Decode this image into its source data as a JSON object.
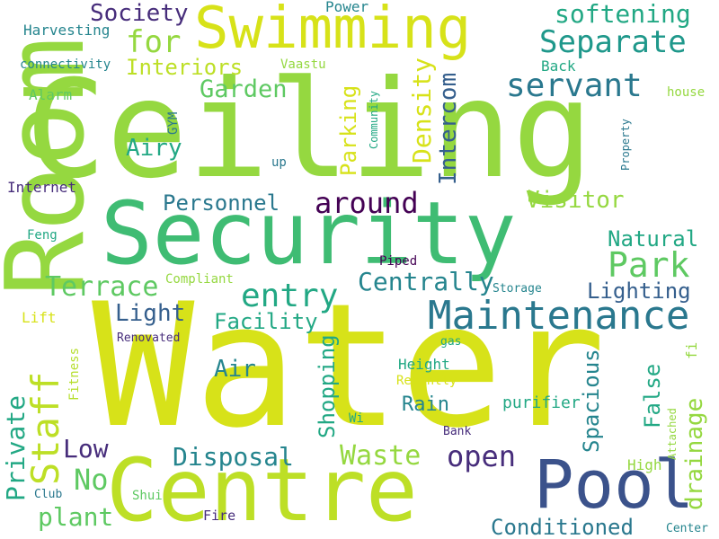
{
  "palette": {
    "background": "#ffffff",
    "word_colors": [
      "#d7e219",
      "#95d840",
      "#5ec962",
      "#3fbc73",
      "#22a884",
      "#1f988b",
      "#25858e",
      "#2a788e",
      "#355f8d",
      "#3b528b",
      "#443983",
      "#472d7b",
      "#440154"
    ]
  },
  "words": [
    {
      "text": "Water",
      "color": "#d7e219"
    },
    {
      "text": "Ceiling",
      "color": "#95d840"
    },
    {
      "text": "Room",
      "color": "#95d840"
    },
    {
      "text": "Security",
      "color": "#3fbc73"
    },
    {
      "text": "Centre",
      "color": "#bddf26"
    },
    {
      "text": "Swimming",
      "color": "#d7e219"
    },
    {
      "text": "Pool",
      "color": "#3b528b"
    },
    {
      "text": "Maintenance",
      "color": "#2a788e"
    },
    {
      "text": "Staff",
      "color": "#bddf26"
    },
    {
      "text": "Park",
      "color": "#5ec962"
    },
    {
      "text": "Separate",
      "color": "#1f988b"
    },
    {
      "text": "servant",
      "color": "#2a788e"
    },
    {
      "text": "entry",
      "color": "#22a884"
    },
    {
      "text": "for",
      "color": "#95d840"
    },
    {
      "text": "softening",
      "color": "#22a884"
    },
    {
      "text": "Society",
      "color": "#472d7b"
    },
    {
      "text": "Interiors",
      "color": "#bddf26"
    },
    {
      "text": "Garden",
      "color": "#5ec962"
    },
    {
      "text": "Airy",
      "color": "#22a884"
    },
    {
      "text": "Density",
      "color": "#d7e219"
    },
    {
      "text": "Parking",
      "color": "#d7e219"
    },
    {
      "text": "Intercom",
      "color": "#355f8d"
    },
    {
      "text": "Personnel",
      "color": "#2a788e"
    },
    {
      "text": "around",
      "color": "#440154"
    },
    {
      "text": "Visitor",
      "color": "#95d840"
    },
    {
      "text": "Natural",
      "color": "#22a884"
    },
    {
      "text": "Terrace",
      "color": "#5ec962"
    },
    {
      "text": "Centrally",
      "color": "#25858e"
    },
    {
      "text": "Lighting",
      "color": "#355f8d"
    },
    {
      "text": "Light",
      "color": "#355f8d"
    },
    {
      "text": "Facility",
      "color": "#22a884"
    },
    {
      "text": "Private",
      "color": "#22a884"
    },
    {
      "text": "Air",
      "color": "#25858e"
    },
    {
      "text": "Low",
      "color": "#472d7b"
    },
    {
      "text": "No",
      "color": "#5ec962"
    },
    {
      "text": "plant",
      "color": "#5ec962"
    },
    {
      "text": "Disposal",
      "color": "#25858e"
    },
    {
      "text": "Waste",
      "color": "#95d840"
    },
    {
      "text": "open",
      "color": "#472d7b"
    },
    {
      "text": "Shopping",
      "color": "#22a884"
    },
    {
      "text": "Spacious",
      "color": "#25858e"
    },
    {
      "text": "False",
      "color": "#22a884"
    },
    {
      "text": "drainage",
      "color": "#95d840"
    },
    {
      "text": "Rain",
      "color": "#25858e"
    },
    {
      "text": "purifier",
      "color": "#22a884"
    },
    {
      "text": "Conditioned",
      "color": "#2a788e"
    },
    {
      "text": "Harvesting",
      "color": "#25858e"
    },
    {
      "text": "connectivity",
      "color": "#25858e"
    },
    {
      "text": "Power",
      "color": "#25858e"
    },
    {
      "text": "Vaastu",
      "color": "#95d840"
    },
    {
      "text": "Back",
      "color": "#22a884"
    },
    {
      "text": "house",
      "color": "#95d840"
    },
    {
      "text": "Alarm",
      "color": "#5ec962"
    },
    {
      "text": "GYM",
      "color": "#2a788e"
    },
    {
      "text": "Community",
      "color": "#22a884"
    },
    {
      "text": "Property",
      "color": "#2a788e"
    },
    {
      "text": "up",
      "color": "#2a788e"
    },
    {
      "text": "Internet",
      "color": "#472d7b"
    },
    {
      "text": "Feng",
      "color": "#22a884"
    },
    {
      "text": "Piped",
      "color": "#440154"
    },
    {
      "text": "Compliant",
      "color": "#95d840"
    },
    {
      "text": "Storage",
      "color": "#25858e"
    },
    {
      "text": "Lift",
      "color": "#d7e219"
    },
    {
      "text": "Renovated",
      "color": "#472d7b"
    },
    {
      "text": "gas",
      "color": "#22a884"
    },
    {
      "text": "fi",
      "color": "#95d840"
    },
    {
      "text": "Height",
      "color": "#22a884"
    },
    {
      "text": "Recently",
      "color": "#d7e219"
    },
    {
      "text": "Fitness",
      "color": "#b5de2b"
    },
    {
      "text": "Wi",
      "color": "#22a884"
    },
    {
      "text": "Attached",
      "color": "#95d840"
    },
    {
      "text": "Bank",
      "color": "#472d7b"
    },
    {
      "text": "High",
      "color": "#95d840"
    },
    {
      "text": "Club",
      "color": "#2a788e"
    },
    {
      "text": "Shui",
      "color": "#5ec962"
    },
    {
      "text": "Fire",
      "color": "#472d7b"
    },
    {
      "text": "Center",
      "color": "#25858e"
    }
  ]
}
